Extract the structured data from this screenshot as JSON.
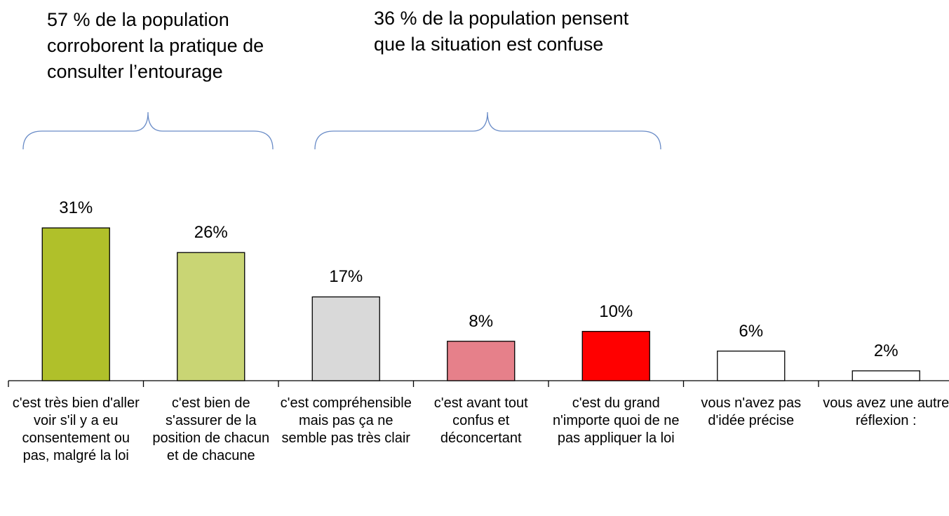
{
  "chart_data": {
    "type": "bar",
    "annotations": [
      "57 % de la population corroborent la pratique de consulter l’entourage",
      "36 % de la population pensent que la situation est confuse"
    ],
    "categories": [
      "c'est très bien d'aller voir s'il y a eu consentement ou pas, malgré la loi",
      "c'est bien de s'assurer de la position de chacun et de chacune",
      "c'est compréhensible mais pas ça ne semble pas très clair",
      "c'est avant tout confus et déconcertant",
      "c'est du grand n'importe quoi de ne pas appliquer la loi",
      "vous n'avez pas d'idée précise",
      "vous avez une autre réflexion :"
    ],
    "values": [
      31,
      26,
      17,
      8,
      10,
      6,
      2
    ],
    "value_labels": [
      "31%",
      "26%",
      "17%",
      "8%",
      "10%",
      "6%",
      "2%"
    ],
    "colors": [
      "#b0c02a",
      "#c9d574",
      "#d9d9d9",
      "#e6808a",
      "#ff0000",
      "#ffffff",
      "#ffffff"
    ]
  }
}
